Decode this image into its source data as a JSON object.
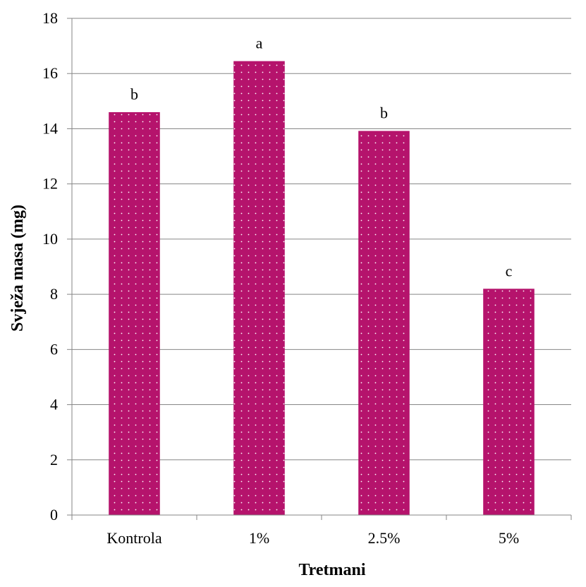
{
  "chart_data": {
    "type": "bar",
    "title": "",
    "xlabel": "Tretmani",
    "ylabel": "Svježa masa (mg)",
    "categories": [
      "Kontrola",
      "1%",
      "2.5%",
      "5%"
    ],
    "values": [
      14.6,
      16.45,
      13.92,
      8.2
    ],
    "bar_labels": [
      "b",
      "a",
      "b",
      "c"
    ],
    "ylim": [
      0,
      18
    ],
    "yticks": [
      0,
      2,
      4,
      6,
      8,
      10,
      12,
      14,
      16,
      18
    ],
    "grid": true,
    "legend": "none",
    "bar_color": "#B5136C",
    "dot_color": "#ffffff"
  }
}
